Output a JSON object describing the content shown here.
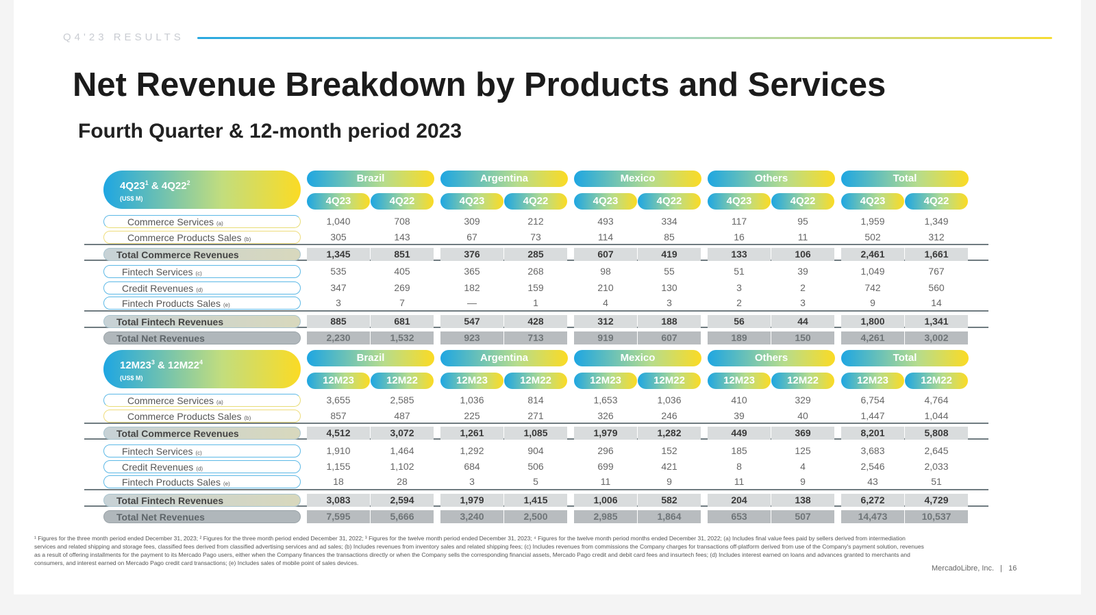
{
  "header": {
    "kicker": "Q4'23 RESULTS",
    "title": "Net Revenue Breakdown by Products and Services",
    "subtitle": "Fourth Quarter & 12-month period 2023"
  },
  "colors": {
    "blue": "#1ea6e2",
    "yellow": "#fbdb24"
  },
  "regions": [
    "Brazil",
    "Argentina",
    "Mexico",
    "Others",
    "Total"
  ],
  "blocks": [
    {
      "title": "4Q23",
      "title_sup": "1",
      "title_mid": " & 4Q22",
      "title_sup2": "2",
      "unit": "(US$ M)",
      "periods": [
        "4Q23",
        "4Q22"
      ],
      "rows": [
        {
          "label": "Commerce Services",
          "note": "(a)",
          "style": "normal",
          "values": [
            "1,040",
            "708",
            "309",
            "212",
            "493",
            "334",
            "117",
            "95",
            "1,959",
            "1,349"
          ]
        },
        {
          "label": "Commerce Products Sales",
          "note": "(b)",
          "style": "normal",
          "values": [
            "305",
            "143",
            "67",
            "73",
            "114",
            "85",
            "16",
            "11",
            "502",
            "312"
          ]
        },
        {
          "label": "Total Commerce Revenues",
          "note": "",
          "style": "total",
          "values": [
            "1,345",
            "851",
            "376",
            "285",
            "607",
            "419",
            "133",
            "106",
            "2,461",
            "1,661"
          ]
        },
        {
          "label": "Fintech Services",
          "note": "(c)",
          "style": "normal",
          "values": [
            "535",
            "405",
            "365",
            "268",
            "98",
            "55",
            "51",
            "39",
            "1,049",
            "767"
          ]
        },
        {
          "label": "Credit Revenues",
          "note": "(d)",
          "style": "normal",
          "values": [
            "347",
            "269",
            "182",
            "159",
            "210",
            "130",
            "3",
            "2",
            "742",
            "560"
          ]
        },
        {
          "label": "Fintech Products Sales",
          "note": "(e)",
          "style": "normal",
          "values": [
            "3",
            "7",
            "—",
            "1",
            "4",
            "3",
            "2",
            "3",
            "9",
            "14"
          ]
        },
        {
          "label": "Total Fintech Revenues",
          "note": "",
          "style": "total",
          "values": [
            "885",
            "681",
            "547",
            "428",
            "312",
            "188",
            "56",
            "44",
            "1,800",
            "1,341"
          ]
        },
        {
          "label": "Total Net Revenues",
          "note": "",
          "style": "grand",
          "values": [
            "2,230",
            "1,532",
            "923",
            "713",
            "919",
            "607",
            "189",
            "150",
            "4,261",
            "3,002"
          ]
        }
      ]
    },
    {
      "title": "12M23",
      "title_sup": "3",
      "title_mid": " & 12M22",
      "title_sup2": "4",
      "unit": "(US$ M)",
      "periods": [
        "12M23",
        "12M22"
      ],
      "rows": [
        {
          "label": "Commerce Services",
          "note": "(a)",
          "style": "normal",
          "values": [
            "3,655",
            "2,585",
            "1,036",
            "814",
            "1,653",
            "1,036",
            "410",
            "329",
            "6,754",
            "4,764"
          ]
        },
        {
          "label": "Commerce Products Sales",
          "note": "(b)",
          "style": "normal",
          "values": [
            "857",
            "487",
            "225",
            "271",
            "326",
            "246",
            "39",
            "40",
            "1,447",
            "1,044"
          ]
        },
        {
          "label": "Total Commerce Revenues",
          "note": "",
          "style": "total",
          "values": [
            "4,512",
            "3,072",
            "1,261",
            "1,085",
            "1,979",
            "1,282",
            "449",
            "369",
            "8,201",
            "5,808"
          ]
        },
        {
          "label": "Fintech Services",
          "note": "(c)",
          "style": "normal",
          "values": [
            "1,910",
            "1,464",
            "1,292",
            "904",
            "296",
            "152",
            "185",
            "125",
            "3,683",
            "2,645"
          ]
        },
        {
          "label": "Credit Revenues",
          "note": "(d)",
          "style": "normal",
          "values": [
            "1,155",
            "1,102",
            "684",
            "506",
            "699",
            "421",
            "8",
            "4",
            "2,546",
            "2,033"
          ]
        },
        {
          "label": "Fintech Products Sales",
          "note": "(e)",
          "style": "normal",
          "values": [
            "18",
            "28",
            "3",
            "5",
            "11",
            "9",
            "11",
            "9",
            "43",
            "51"
          ]
        },
        {
          "label": "Total Fintech Revenues",
          "note": "",
          "style": "total",
          "values": [
            "3,083",
            "2,594",
            "1,979",
            "1,415",
            "1,006",
            "582",
            "204",
            "138",
            "6,272",
            "4,729"
          ]
        },
        {
          "label": "Total Net Revenues",
          "note": "",
          "style": "grand",
          "values": [
            "7,595",
            "5,666",
            "3,240",
            "2,500",
            "2,985",
            "1,864",
            "653",
            "507",
            "14,473",
            "10,537"
          ]
        }
      ]
    }
  ],
  "footnote": "¹ Figures for the three month period ended December 31, 2023; ² Figures for the three month period ended December 31, 2022; ³ Figures for the twelve month period ended December 31, 2023; ⁴ Figures for the twelve month period months ended December 31, 2022; (a) Includes final value fees paid by sellers derived from intermediation services and related shipping and storage fees, classified fees derived from classified advertising services and ad sales; (b) Includes revenues from inventory sales and related shipping fees; (c) Includes revenues from commissions the Company charges for transactions off-platform derived from use of the Company's payment solution, revenues as a result of offering installments for the payment to its Mercado Pago users, either when the Company finances the transactions directly or when the Company sells the corresponding financial assets, Mercado Pago credit and debit card fees and insurtech fees; (d) Includes interest earned on loans and advances granted to merchants and consumers, and interest earned on Mercado Pago credit card transactions; (e) Includes sales of mobile point of sales devices.",
  "footer": {
    "company": "MercadoLibre, Inc.",
    "separator": "|",
    "page": "16"
  }
}
